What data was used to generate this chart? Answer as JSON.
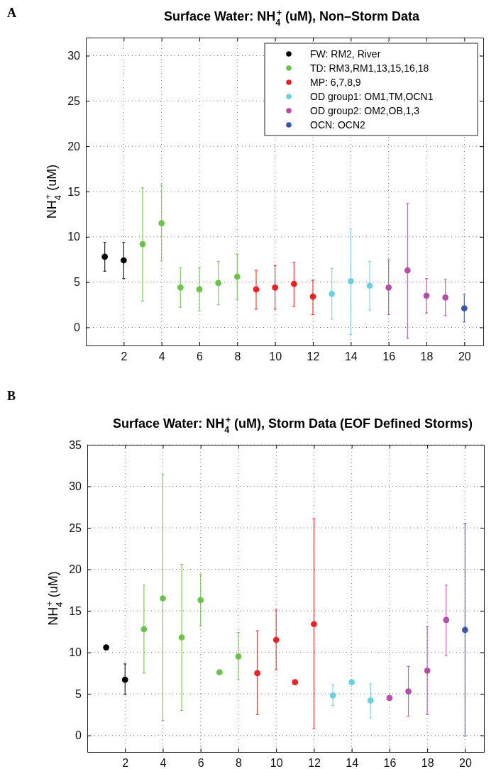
{
  "chart_data": [
    {
      "type": "scatter",
      "title": "Surface Water: NH$_{4}$$^{+}$ (uM), Non–Storm Data",
      "ylabel": "NH$_{4}$$^{+}$ (uM)",
      "annotations": [
        "A"
      ],
      "xlim": [
        0,
        21
      ],
      "xticks": [
        2,
        4,
        6,
        8,
        10,
        12,
        14,
        16,
        18,
        20
      ],
      "ylim": [
        -2,
        32
      ],
      "yticks": [
        0,
        5,
        10,
        15,
        20,
        25,
        30
      ],
      "grid": true,
      "legend": "top right",
      "marker": "circle",
      "series": [
        {
          "name": "FW: RM2, River",
          "color": "#000000",
          "x": [
            1,
            2
          ],
          "values": [
            7.8,
            7.4
          ],
          "errors": [
            [
              6.2,
              9.4
            ],
            [
              5.4,
              9.4
            ]
          ]
        },
        {
          "name": "TD: RM3,RM1,13,15,16,18",
          "color": "#6cc24a",
          "x": [
            3,
            4,
            5,
            6,
            7,
            8
          ],
          "values": [
            9.2,
            11.5,
            4.4,
            4.2,
            4.9,
            5.6
          ],
          "errors": [
            [
              2.9,
              15.4
            ],
            [
              7.4,
              15.7
            ],
            [
              2.2,
              6.6
            ],
            [
              1.8,
              6.6
            ],
            [
              2.5,
              7.3
            ],
            [
              3.1,
              8.1
            ]
          ]
        },
        {
          "name": "MP: 6,7,8,9",
          "color": "#ee2024",
          "x": [
            9,
            10,
            11,
            12
          ],
          "values": [
            4.2,
            4.4,
            4.8,
            3.4
          ],
          "errors": [
            [
              2.0,
              6.3
            ],
            [
              2.0,
              6.8
            ],
            [
              2.3,
              7.2
            ],
            [
              1.4,
              5.2
            ]
          ]
        },
        {
          "name": "OD group1: OM1,TM,OCN1",
          "color": "#6dcfe0",
          "x": [
            13,
            14,
            15
          ],
          "values": [
            3.7,
            5.1,
            4.6
          ],
          "errors": [
            [
              0.9,
              6.5
            ],
            [
              -0.8,
              10.9
            ],
            [
              1.9,
              7.3
            ]
          ]
        },
        {
          "name": "OD group2: OM2,OB,1,3",
          "color": "#b54fa6",
          "x": [
            16,
            17,
            18,
            19
          ],
          "values": [
            4.4,
            6.3,
            3.5,
            3.3
          ],
          "errors": [
            [
              1.4,
              7.5
            ],
            [
              -1.2,
              13.7
            ],
            [
              1.6,
              5.4
            ],
            [
              1.3,
              5.3
            ]
          ]
        },
        {
          "name": "OCN: OCN2",
          "color": "#3a56a6",
          "x": [
            20
          ],
          "values": [
            2.1
          ],
          "errors": [
            [
              0.6,
              3.6
            ]
          ]
        }
      ]
    },
    {
      "type": "scatter",
      "title": "Surface Water: NH$_{4}$$^{+}$ (uM), Storm Data (EOF Defined Storms)",
      "ylabel": "NH$_{4}$$^{+}$ (uM)",
      "annotations": [
        "B"
      ],
      "xlim": [
        0,
        21
      ],
      "xticks": [
        2,
        4,
        6,
        8,
        10,
        12,
        14,
        16,
        18,
        20
      ],
      "ylim": [
        -2,
        35
      ],
      "yticks": [
        0,
        5,
        10,
        15,
        20,
        25,
        30,
        35
      ],
      "grid": true,
      "marker": "circle",
      "series": [
        {
          "color": "#000000",
          "x": [
            1,
            2
          ],
          "values": [
            10.6,
            6.7
          ],
          "errors": [
            null,
            [
              4.9,
              8.6
            ]
          ]
        },
        {
          "color": "#6cc24a",
          "x": [
            3,
            4,
            5,
            6,
            7,
            8
          ],
          "values": [
            12.8,
            16.5,
            11.8,
            16.3,
            7.6,
            9.5
          ],
          "errors": [
            [
              7.5,
              18.1
            ],
            [
              1.8,
              31.4
            ],
            [
              3.0,
              20.6
            ],
            [
              13.2,
              19.4
            ],
            null,
            [
              6.7,
              12.4
            ]
          ]
        },
        {
          "color": "#ee2024",
          "x": [
            9,
            10,
            11,
            12
          ],
          "values": [
            7.5,
            11.5,
            6.4,
            13.4
          ],
          "errors": [
            [
              2.5,
              12.6
            ],
            [
              7.9,
              15.1
            ],
            null,
            [
              0.8,
              26.1
            ]
          ]
        },
        {
          "color": "#6dcfe0",
          "x": [
            13,
            14,
            15
          ],
          "values": [
            4.8,
            6.4,
            4.2
          ],
          "errors": [
            [
              3.6,
              6.1
            ],
            null,
            [
              2.1,
              6.2
            ]
          ]
        },
        {
          "color": "#b54fa6",
          "x": [
            16,
            17,
            18,
            19
          ],
          "values": [
            4.5,
            5.3,
            7.8,
            13.9
          ],
          "errors": [
            null,
            [
              2.3,
              8.3
            ],
            [
              2.5,
              13.1
            ],
            [
              9.6,
              18.1
            ]
          ]
        },
        {
          "color": "#3a56a6",
          "x": [
            20
          ],
          "values": [
            12.7
          ],
          "errors": [
            [
              -0.1,
              25.5
            ]
          ]
        }
      ]
    }
  ]
}
